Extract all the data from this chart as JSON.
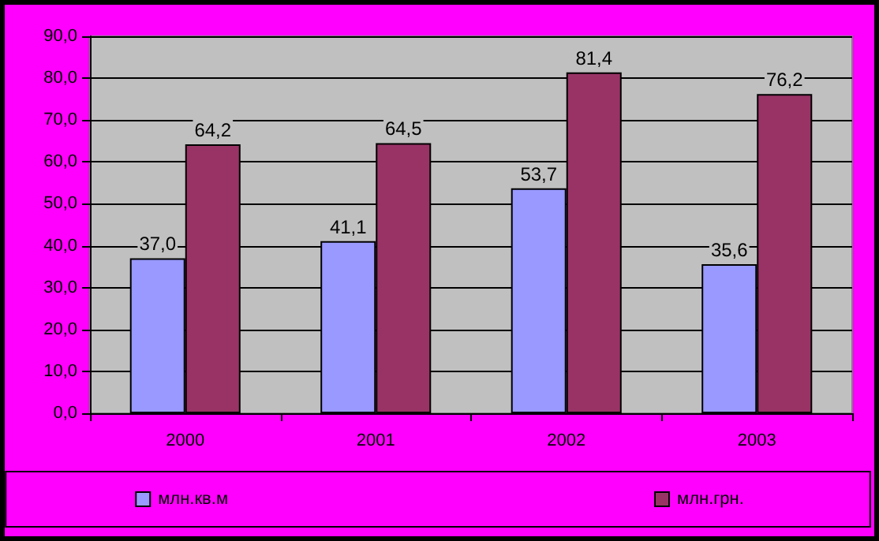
{
  "chart_data": {
    "type": "bar",
    "categories": [
      "2000",
      "2001",
      "2002",
      "2003"
    ],
    "series": [
      {
        "name": "млн.кв.м",
        "color": "#9999ff",
        "values": [
          37.0,
          41.1,
          53.7,
          35.6
        ],
        "value_labels": [
          "37,0",
          "41,1",
          "53,7",
          "35,6"
        ]
      },
      {
        "name": "млн.грн.",
        "color": "#993366",
        "values": [
          64.2,
          64.5,
          81.4,
          76.2
        ],
        "value_labels": [
          "64,2",
          "64,5",
          "81,4",
          "76,2"
        ]
      }
    ],
    "ylim": [
      0,
      90
    ],
    "yticks": [
      {
        "value": 0,
        "label": "0,0"
      },
      {
        "value": 10,
        "label": "10,0"
      },
      {
        "value": 20,
        "label": "20,0"
      },
      {
        "value": 30,
        "label": "30,0"
      },
      {
        "value": 40,
        "label": "40,0"
      },
      {
        "value": 50,
        "label": "50,0"
      },
      {
        "value": 60,
        "label": "60,0"
      },
      {
        "value": 70,
        "label": "70,0"
      },
      {
        "value": 80,
        "label": "80,0"
      },
      {
        "value": 90,
        "label": "90,0"
      }
    ],
    "grid": "y",
    "legend": "bottom"
  }
}
